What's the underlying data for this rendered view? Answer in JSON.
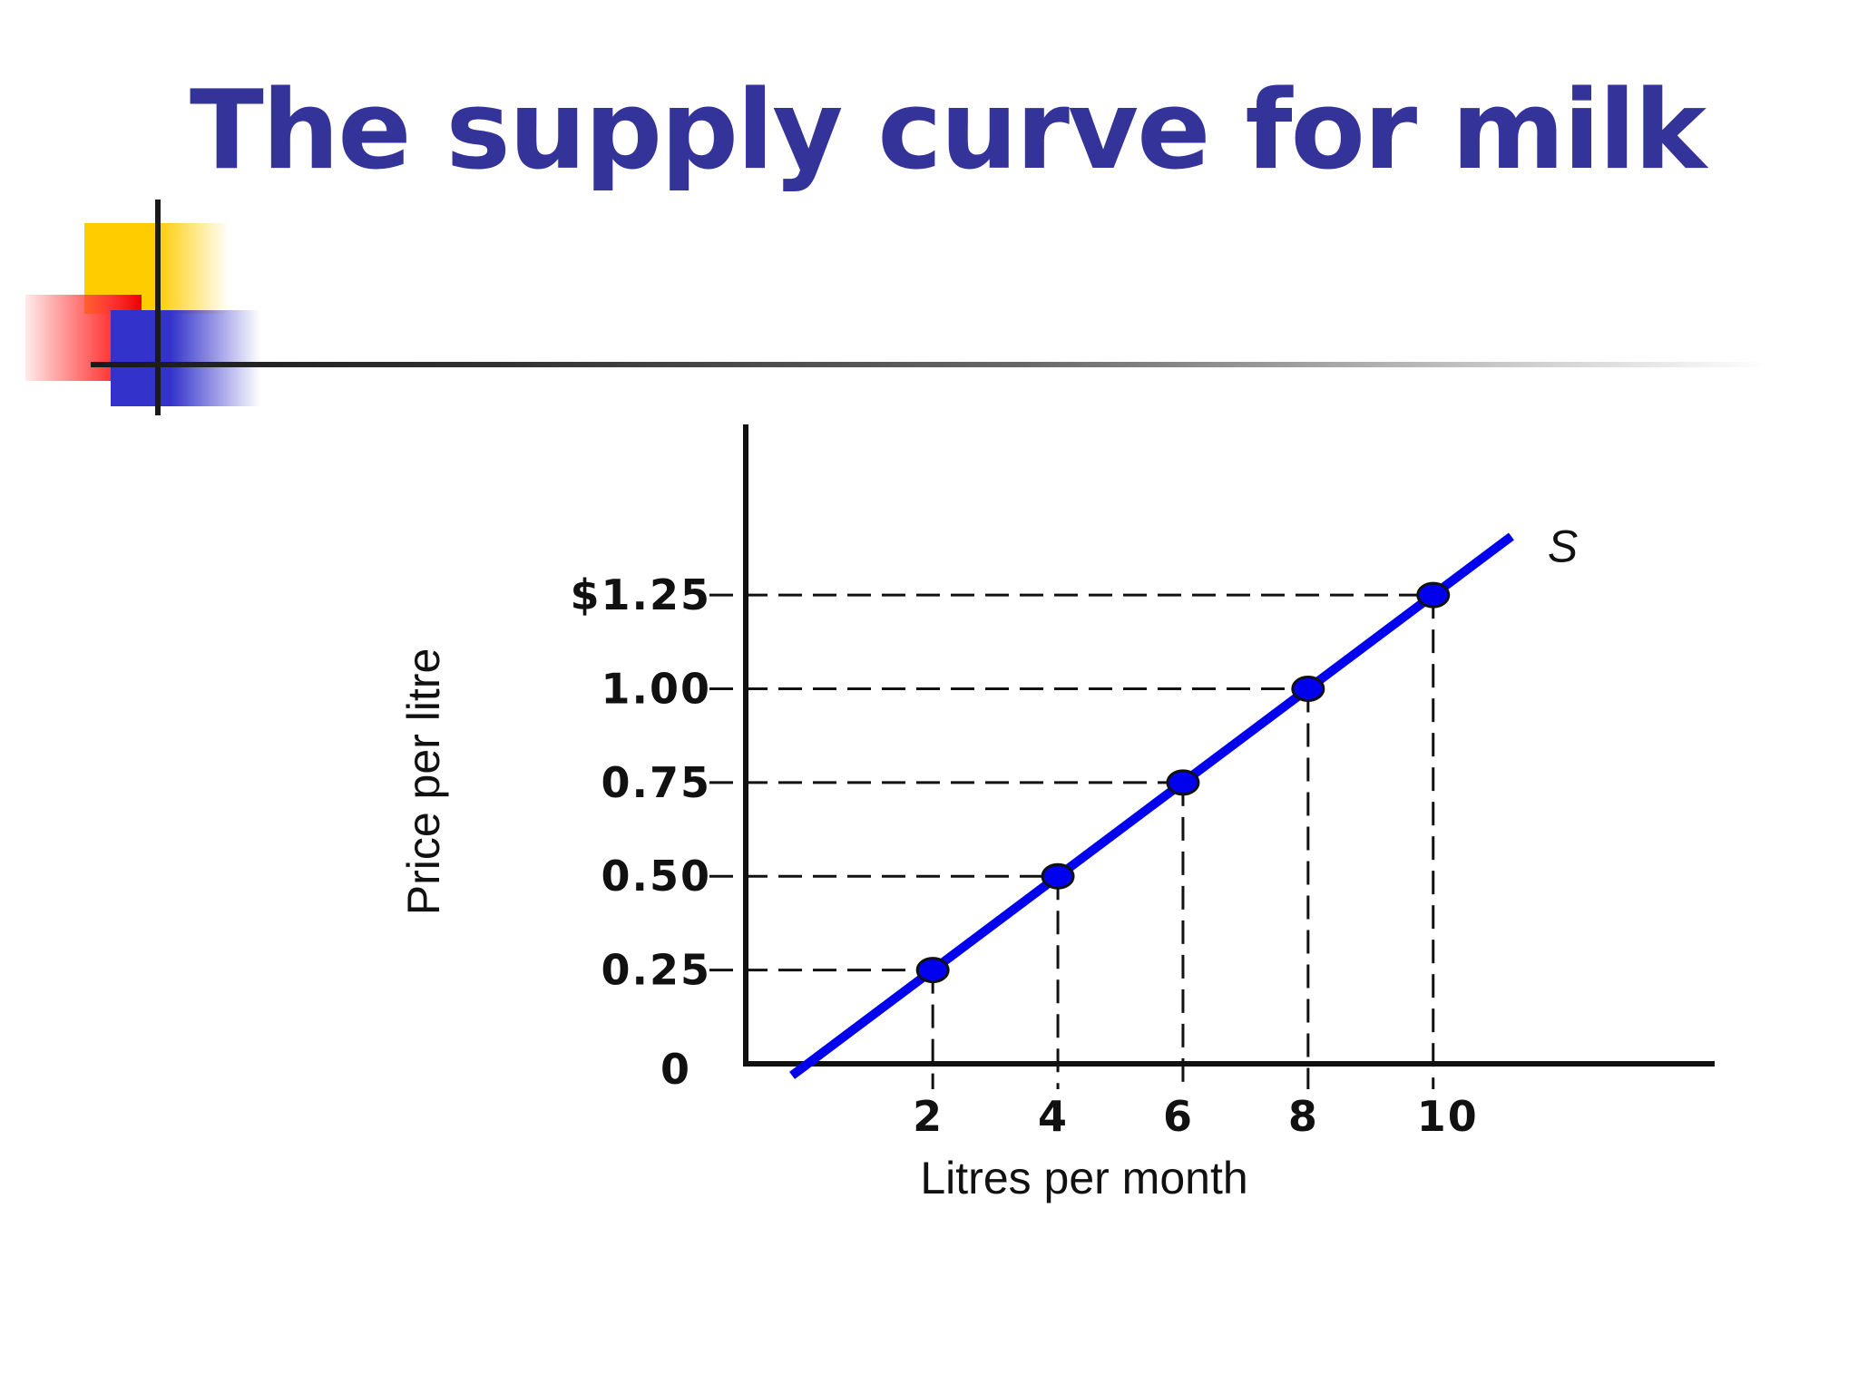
{
  "slide": {
    "title": "The supply curve for milk"
  },
  "chart_data": {
    "type": "line",
    "xlabel": "Litres per month",
    "ylabel": "Price per litre",
    "x": [
      2,
      4,
      6,
      8,
      10
    ],
    "series": [
      {
        "name": "S",
        "values": [
          0.25,
          0.5,
          0.75,
          1.0,
          1.25
        ],
        "color": "#0000ee"
      }
    ],
    "x_ticks": [
      {
        "value": 2,
        "label": "2"
      },
      {
        "value": 4,
        "label": "4"
      },
      {
        "value": 6,
        "label": "6"
      },
      {
        "value": 8,
        "label": "8"
      },
      {
        "value": 10,
        "label": "10"
      }
    ],
    "y_ticks": [
      {
        "value": 0,
        "label": "0"
      },
      {
        "value": 0.25,
        "label": "0.25"
      },
      {
        "value": 0.5,
        "label": "0.50"
      },
      {
        "value": 0.75,
        "label": "0.75"
      },
      {
        "value": 1.0,
        "label": "1.00"
      },
      {
        "value": 1.25,
        "label": "$1.25"
      }
    ],
    "line_extent_x": [
      -0.25,
      11.25
    ],
    "xlim": [
      -3.92,
      14.5
    ],
    "ylim": [
      0,
      1.7
    ],
    "guide_lines": "dashed",
    "grid": false,
    "legend": "none"
  }
}
